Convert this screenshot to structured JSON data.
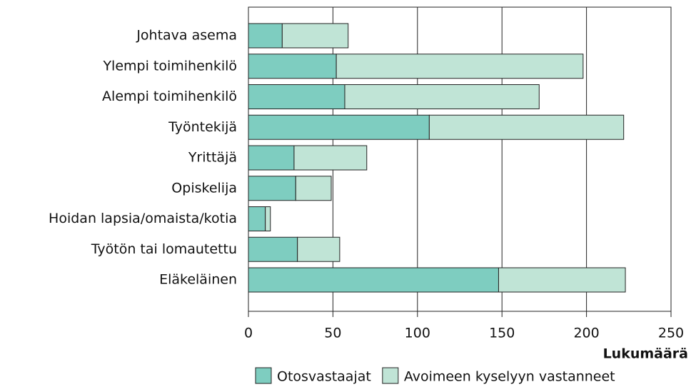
{
  "chart_data": {
    "type": "stacked_barh",
    "categories": [
      "Johtava asema",
      "Ylempi toimihenkilö",
      "Alempi toimihenkilö",
      "Työntekijä",
      "Yrittäjä",
      "Opiskelija",
      "Hoidan lapsia/omaista/kotia",
      "Työtön tai lomautettu",
      "Eläkeläinen"
    ],
    "series": [
      {
        "name": "Otosvastaajat",
        "color": "#7ecdc0",
        "values": [
          20,
          52,
          57,
          107,
          27,
          28,
          10,
          29,
          148
        ]
      },
      {
        "name": "Avoimeen kyselyyn vastanneet",
        "color": "#c0e4d6",
        "values": [
          39,
          146,
          115,
          115,
          43,
          21,
          3,
          25,
          75
        ]
      }
    ],
    "xlabel": "Lukumäärä",
    "xlim": [
      0,
      250
    ],
    "xticks": [
      0,
      50,
      100,
      150,
      200,
      250
    ],
    "grid": true,
    "legend": "bottom"
  }
}
